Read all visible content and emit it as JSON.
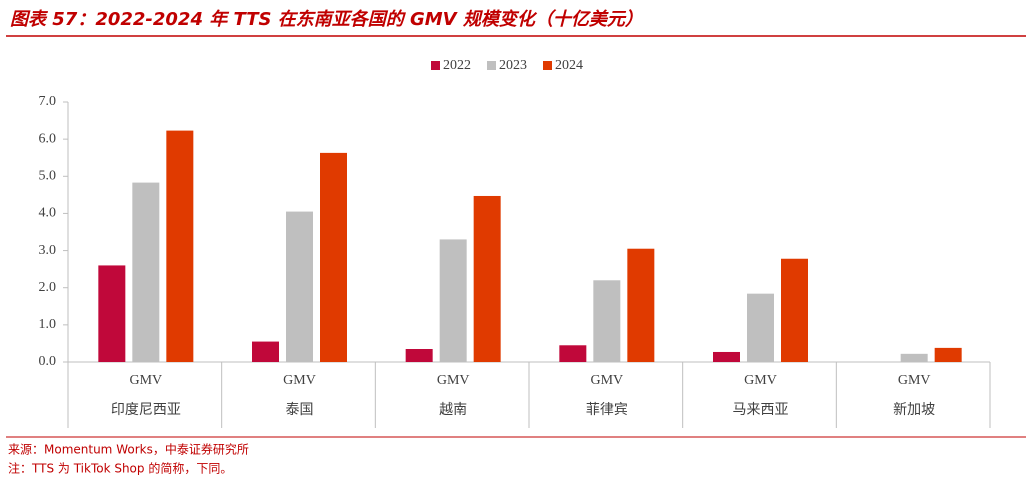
{
  "chart_data": {
    "type": "bar",
    "title": "图表 57：2022-2024 年 TTS 在东南亚各国的 GMV 规模变化（十亿美元）",
    "categories": [
      "印度尼西亚",
      "泰国",
      "越南",
      "菲律宾",
      "马来西亚",
      "新加坡"
    ],
    "category_label": "GMV",
    "series": [
      {
        "name": "2022",
        "color": "#c0083a",
        "values": [
          2.6,
          0.55,
          0.35,
          0.45,
          0.27,
          0
        ]
      },
      {
        "name": "2023",
        "color": "#bfbfbf",
        "values": [
          4.83,
          4.05,
          3.3,
          2.2,
          1.84,
          0.22
        ]
      },
      {
        "name": "2024",
        "color": "#e03a00",
        "values": [
          6.23,
          5.63,
          4.47,
          3.05,
          2.78,
          0.38
        ]
      }
    ],
    "ylim": [
      0,
      7
    ],
    "yticks": [
      {
        "value": 0,
        "label": "0.0"
      },
      {
        "value": 1,
        "label": "1.0"
      },
      {
        "value": 2,
        "label": "2.0"
      },
      {
        "value": 3,
        "label": "3.0"
      },
      {
        "value": 4,
        "label": "4.0"
      },
      {
        "value": 5,
        "label": "5.0"
      },
      {
        "value": 6,
        "label": "6.0"
      },
      {
        "value": 7,
        "label": "7.0"
      }
    ],
    "legend_position": "top",
    "notes": [
      "来源：Momentum Works，中泰证券研究所",
      "注：TTS 为 TikTok Shop 的简称，下同。"
    ]
  }
}
